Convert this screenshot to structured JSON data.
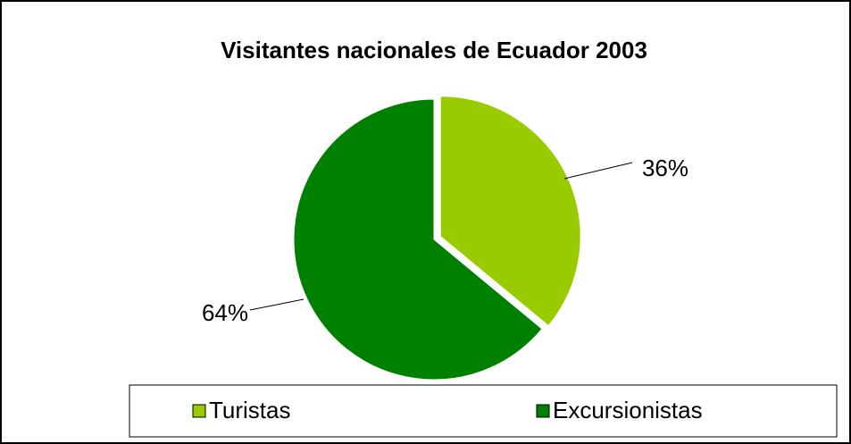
{
  "chart_data": {
    "type": "pie",
    "title": "Visitantes nacionales de Ecuador 2003",
    "categories": [
      "Turistas",
      "Excursionistas"
    ],
    "values": [
      36,
      64
    ],
    "value_labels": [
      "36%",
      "64%"
    ],
    "colors": [
      "#99cc00",
      "#008000"
    ],
    "legend": "bottom"
  }
}
